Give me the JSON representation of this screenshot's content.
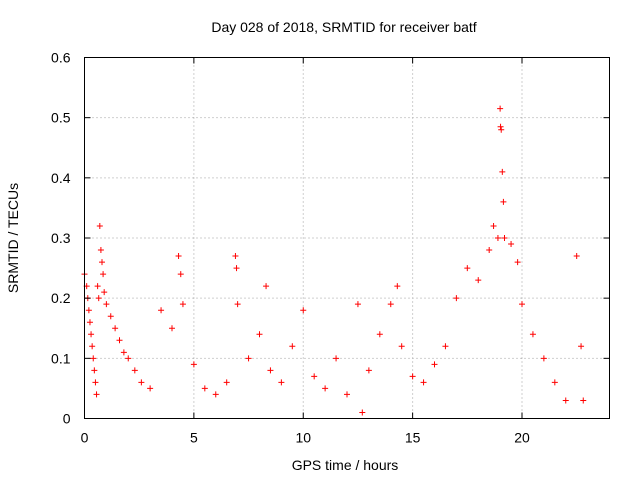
{
  "chart_data": {
    "type": "scatter",
    "title": "Day 028 of 2018, SRMTID for receiver batf",
    "xlabel": "GPS time / hours",
    "ylabel": "SRMTID / TECUs",
    "xlim": [
      0,
      24
    ],
    "ylim": [
      0,
      0.6
    ],
    "x_ticks": [
      0,
      5,
      10,
      15,
      20
    ],
    "x_tick_labels": [
      "0",
      "5",
      "10",
      "15",
      "20"
    ],
    "y_ticks": [
      0,
      0.1,
      0.2,
      0.3,
      0.4,
      0.5,
      0.6
    ],
    "y_tick_labels": [
      "0",
      "0.1",
      "0.2",
      "0.3",
      "0.4",
      "0.5",
      "0.6"
    ],
    "grid": true,
    "marker": "plus",
    "series": [
      {
        "name": "SRMTID",
        "color": "#ff0000",
        "points": [
          [
            0.0,
            0.24
          ],
          [
            0.1,
            0.22
          ],
          [
            0.15,
            0.2
          ],
          [
            0.2,
            0.18
          ],
          [
            0.25,
            0.16
          ],
          [
            0.3,
            0.14
          ],
          [
            0.35,
            0.12
          ],
          [
            0.4,
            0.1
          ],
          [
            0.45,
            0.08
          ],
          [
            0.5,
            0.06
          ],
          [
            0.55,
            0.04
          ],
          [
            0.6,
            0.22
          ],
          [
            0.65,
            0.2
          ],
          [
            0.7,
            0.32
          ],
          [
            0.75,
            0.28
          ],
          [
            0.8,
            0.26
          ],
          [
            0.85,
            0.24
          ],
          [
            0.9,
            0.21
          ],
          [
            1.0,
            0.19
          ],
          [
            1.2,
            0.17
          ],
          [
            1.4,
            0.15
          ],
          [
            1.6,
            0.13
          ],
          [
            1.8,
            0.11
          ],
          [
            2.0,
            0.1
          ],
          [
            2.3,
            0.08
          ],
          [
            2.6,
            0.06
          ],
          [
            3.0,
            0.05
          ],
          [
            3.5,
            0.18
          ],
          [
            4.0,
            0.15
          ],
          [
            4.3,
            0.27
          ],
          [
            4.4,
            0.24
          ],
          [
            4.5,
            0.19
          ],
          [
            5.0,
            0.09
          ],
          [
            5.5,
            0.05
          ],
          [
            6.0,
            0.04
          ],
          [
            6.5,
            0.06
          ],
          [
            6.9,
            0.27
          ],
          [
            6.95,
            0.25
          ],
          [
            7.0,
            0.19
          ],
          [
            7.5,
            0.1
          ],
          [
            8.0,
            0.14
          ],
          [
            8.3,
            0.22
          ],
          [
            8.5,
            0.08
          ],
          [
            9.0,
            0.06
          ],
          [
            9.5,
            0.12
          ],
          [
            10.0,
            0.18
          ],
          [
            10.5,
            0.07
          ],
          [
            11.0,
            0.05
          ],
          [
            11.5,
            0.1
          ],
          [
            12.0,
            0.04
          ],
          [
            12.5,
            0.19
          ],
          [
            12.7,
            0.01
          ],
          [
            13.0,
            0.08
          ],
          [
            13.5,
            0.14
          ],
          [
            14.0,
            0.19
          ],
          [
            14.3,
            0.22
          ],
          [
            14.5,
            0.12
          ],
          [
            15.0,
            0.07
          ],
          [
            15.5,
            0.06
          ],
          [
            16.0,
            0.09
          ],
          [
            16.5,
            0.12
          ],
          [
            17.0,
            0.2
          ],
          [
            17.5,
            0.25
          ],
          [
            18.0,
            0.23
          ],
          [
            18.5,
            0.28
          ],
          [
            18.7,
            0.32
          ],
          [
            18.9,
            0.3
          ],
          [
            19.0,
            0.515
          ],
          [
            19.02,
            0.485
          ],
          [
            19.05,
            0.48
          ],
          [
            19.1,
            0.41
          ],
          [
            19.15,
            0.36
          ],
          [
            19.2,
            0.3
          ],
          [
            19.5,
            0.29
          ],
          [
            19.8,
            0.26
          ],
          [
            20.0,
            0.19
          ],
          [
            20.5,
            0.14
          ],
          [
            21.0,
            0.1
          ],
          [
            21.5,
            0.06
          ],
          [
            22.0,
            0.03
          ],
          [
            22.5,
            0.27
          ],
          [
            22.7,
            0.12
          ],
          [
            22.8,
            0.03
          ]
        ]
      }
    ]
  }
}
